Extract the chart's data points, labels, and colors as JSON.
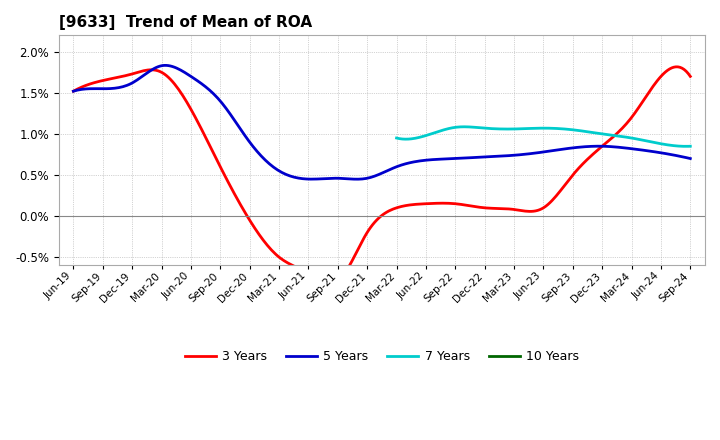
{
  "title": "[9633]  Trend of Mean of ROA",
  "background_color": "#ffffff",
  "grid_color": "#aaaaaa",
  "yticks": [
    -0.005,
    0.0,
    0.005,
    0.01,
    0.015,
    0.02
  ],
  "ylim": [
    -0.006,
    0.022
  ],
  "x_labels": [
    "Jun-19",
    "Sep-19",
    "Dec-19",
    "Mar-20",
    "Jun-20",
    "Sep-20",
    "Dec-20",
    "Mar-21",
    "Jun-21",
    "Sep-21",
    "Dec-21",
    "Mar-22",
    "Jun-22",
    "Sep-22",
    "Dec-22",
    "Mar-23",
    "Jun-23",
    "Sep-23",
    "Dec-23",
    "Mar-24",
    "Jun-24",
    "Sep-24"
  ],
  "series": {
    "3 Years": {
      "color": "#ff0000",
      "data": [
        0.0152,
        0.0165,
        0.0173,
        0.0175,
        0.013,
        0.006,
        -0.0005,
        -0.005,
        -0.007,
        -0.008,
        -0.002,
        0.001,
        0.0015,
        0.0015,
        0.001,
        0.0008,
        0.001,
        0.005,
        0.0085,
        0.012,
        0.017,
        0.017
      ]
    },
    "5 Years": {
      "color": "#0000cc",
      "data": [
        0.0152,
        0.0155,
        0.0162,
        0.0183,
        0.017,
        0.014,
        0.009,
        0.0055,
        0.0045,
        0.0046,
        0.0046,
        0.006,
        0.0068,
        0.007,
        0.0072,
        0.0074,
        0.0078,
        0.0083,
        0.0085,
        0.0082,
        0.0077,
        0.007
      ]
    },
    "7 Years": {
      "color": "#00cccc",
      "data": [
        null,
        null,
        null,
        null,
        null,
        null,
        null,
        null,
        null,
        null,
        null,
        0.0095,
        0.0098,
        0.0108,
        0.0107,
        0.0106,
        0.0107,
        0.0105,
        0.01,
        0.0095,
        0.0088,
        0.0085
      ]
    },
    "10 Years": {
      "color": "#006600",
      "data": [
        null,
        null,
        null,
        null,
        null,
        null,
        null,
        null,
        null,
        null,
        null,
        null,
        null,
        null,
        null,
        null,
        null,
        null,
        null,
        null,
        null,
        null
      ]
    }
  },
  "legend_entries": [
    "3 Years",
    "5 Years",
    "7 Years",
    "10 Years"
  ],
  "legend_colors": [
    "#ff0000",
    "#0000cc",
    "#00cccc",
    "#006600"
  ]
}
